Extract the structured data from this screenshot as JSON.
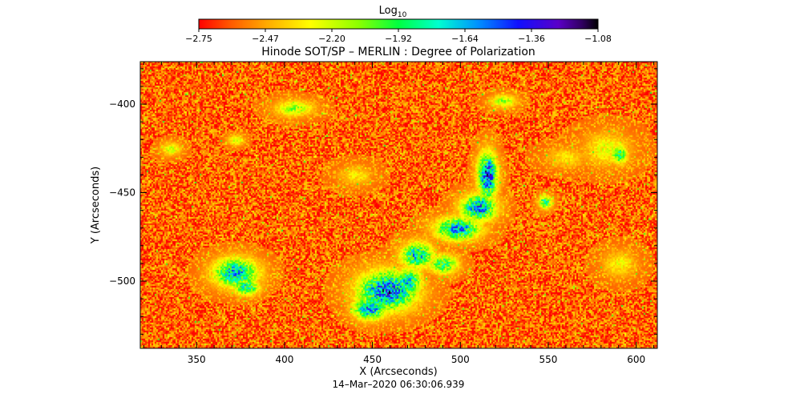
{
  "chart_data": {
    "type": "heatmap",
    "title": "Hinode SOT/SP – MERLIN : Degree of Polarization",
    "xlabel": "X (Arcseconds)",
    "ylabel": "Y (Arcseconds)",
    "timestamp": "14–Mar–2020 06:30:06.939",
    "xlim": [
      318,
      612
    ],
    "ylim": [
      -538,
      -376
    ],
    "x_ticks": [
      350,
      400,
      450,
      500,
      550,
      600
    ],
    "y_ticks": [
      -400,
      -450,
      -500
    ],
    "colorbar": {
      "label_base": "Log",
      "label_sub": "10",
      "min": -2.75,
      "max": -1.08,
      "tick_labels": [
        "-2.75",
        "-2.47",
        "-2.20",
        "-1.92",
        "-1.64",
        "-1.36",
        "-1.08"
      ],
      "colormap": "rainbow (red → yellow → green → cyan → blue → purple → black)"
    },
    "background_level": -2.6,
    "regions": [
      {
        "x": 515,
        "y": -440,
        "rx": 6,
        "ry": 14,
        "peak": -1.3
      },
      {
        "x": 510,
        "y": -458,
        "rx": 11,
        "ry": 8,
        "peak": -1.45
      },
      {
        "x": 498,
        "y": -470,
        "rx": 14,
        "ry": 7,
        "peak": -1.5
      },
      {
        "x": 475,
        "y": -485,
        "rx": 10,
        "ry": 8,
        "peak": -1.6
      },
      {
        "x": 490,
        "y": -490,
        "rx": 9,
        "ry": 6,
        "peak": -1.8
      },
      {
        "x": 458,
        "y": -505,
        "rx": 18,
        "ry": 12,
        "peak": -1.35
      },
      {
        "x": 448,
        "y": -515,
        "rx": 10,
        "ry": 7,
        "peak": -1.45
      },
      {
        "x": 470,
        "y": -500,
        "rx": 8,
        "ry": 8,
        "peak": -1.6
      },
      {
        "x": 372,
        "y": -495,
        "rx": 14,
        "ry": 9,
        "peak": -1.55
      },
      {
        "x": 378,
        "y": -503,
        "rx": 8,
        "ry": 5,
        "peak": -1.7
      },
      {
        "x": 548,
        "y": -455,
        "rx": 4,
        "ry": 4,
        "peak": -1.7
      },
      {
        "x": 590,
        "y": -428,
        "rx": 5,
        "ry": 6,
        "peak": -1.8
      },
      {
        "x": 405,
        "y": -402,
        "rx": 12,
        "ry": 5,
        "peak": -2.05
      },
      {
        "x": 524,
        "y": -398,
        "rx": 8,
        "ry": 4,
        "peak": -2.05
      },
      {
        "x": 372,
        "y": -420,
        "rx": 5,
        "ry": 3,
        "peak": -2.1
      },
      {
        "x": 335,
        "y": -425,
        "rx": 6,
        "ry": 4,
        "peak": -2.15
      },
      {
        "x": 583,
        "y": -425,
        "rx": 14,
        "ry": 10,
        "peak": -2.2
      },
      {
        "x": 590,
        "y": -490,
        "rx": 10,
        "ry": 8,
        "peak": -2.25
      },
      {
        "x": 560,
        "y": -430,
        "rx": 12,
        "ry": 6,
        "peak": -2.3
      },
      {
        "x": 440,
        "y": -440,
        "rx": 10,
        "ry": 6,
        "peak": -2.3
      }
    ]
  }
}
